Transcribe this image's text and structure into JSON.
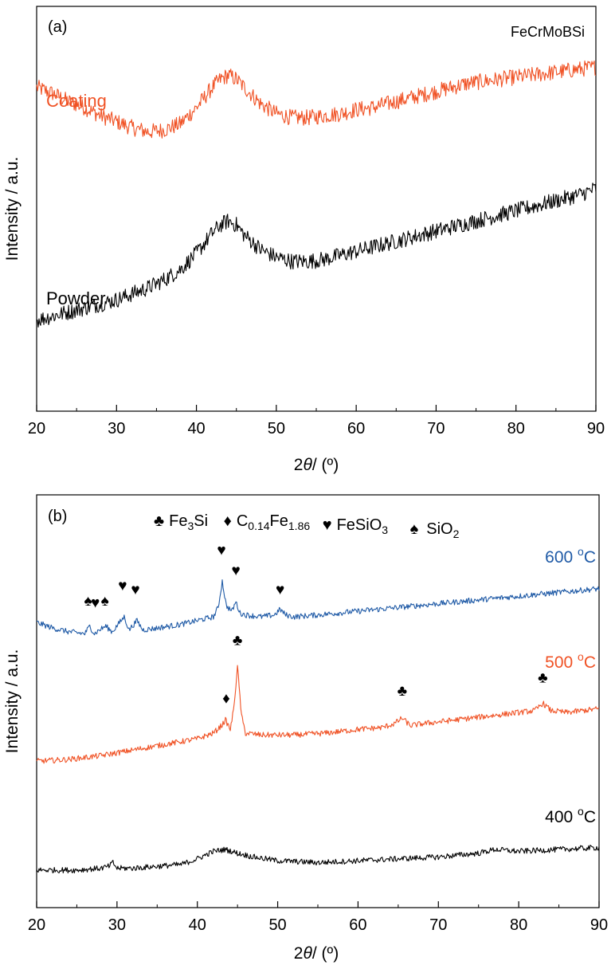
{
  "colors": {
    "coating": "#F05225",
    "powder": "#000000",
    "s600": "#1F5AA6",
    "s500": "#F05225",
    "s400": "#000000",
    "axis": "#000000"
  },
  "chart_data": [
    {
      "type": "line",
      "panel_label": "(a)",
      "title": "FeCrMoBSi",
      "xlabel_prefix": "2",
      "xlabel_symbol": "θ",
      "xlabel_suffix": "/ (º)",
      "ylabel": "Intensity / a.u.",
      "xlim": [
        20,
        90
      ],
      "xticks": [
        20,
        30,
        40,
        50,
        60,
        70,
        80,
        90
      ],
      "yticks_shown": false,
      "grid": false,
      "noise_amplitude": 0.04,
      "series": [
        {
          "name": "Coating",
          "color": "#F05225",
          "x": [
            20,
            22,
            24,
            26,
            28,
            30,
            32,
            34,
            36,
            38,
            40,
            42,
            43,
            44,
            45,
            46,
            48,
            50,
            52,
            54,
            56,
            58,
            60,
            62,
            64,
            66,
            68,
            70,
            72,
            74,
            76,
            78,
            80,
            82,
            84,
            86,
            88,
            90
          ],
          "y": [
            1.6,
            1.57,
            1.53,
            1.5,
            1.46,
            1.43,
            1.4,
            1.38,
            1.39,
            1.42,
            1.5,
            1.6,
            1.64,
            1.66,
            1.64,
            1.6,
            1.52,
            1.47,
            1.45,
            1.45,
            1.46,
            1.47,
            1.49,
            1.5,
            1.52,
            1.54,
            1.56,
            1.58,
            1.6,
            1.62,
            1.63,
            1.64,
            1.65,
            1.66,
            1.67,
            1.68,
            1.69,
            1.7
          ]
        },
        {
          "name": "Powder",
          "color": "#000000",
          "x": [
            20,
            22,
            24,
            26,
            28,
            30,
            32,
            34,
            36,
            38,
            40,
            42,
            43,
            44,
            45,
            46,
            48,
            50,
            52,
            54,
            56,
            58,
            60,
            62,
            64,
            66,
            68,
            70,
            72,
            74,
            76,
            78,
            80,
            82,
            84,
            86,
            88,
            90
          ],
          "y": [
            0.45,
            0.47,
            0.49,
            0.51,
            0.53,
            0.55,
            0.58,
            0.61,
            0.65,
            0.7,
            0.78,
            0.88,
            0.92,
            0.94,
            0.92,
            0.87,
            0.8,
            0.76,
            0.74,
            0.74,
            0.75,
            0.77,
            0.79,
            0.81,
            0.83,
            0.85,
            0.87,
            0.89,
            0.91,
            0.93,
            0.95,
            0.97,
            0.99,
            1.01,
            1.03,
            1.05,
            1.07,
            1.1
          ]
        }
      ]
    },
    {
      "type": "line",
      "panel_label": "(b)",
      "xlabel_prefix": "2",
      "xlabel_symbol": "θ",
      "xlabel_suffix": "/ (º)",
      "ylabel": "Intensity / a.u.",
      "xlim": [
        20,
        90
      ],
      "xticks": [
        20,
        30,
        40,
        50,
        60,
        70,
        80,
        90
      ],
      "yticks_shown": false,
      "grid": false,
      "noise_amplitude": 0.015,
      "legend": [
        {
          "symbol": "♣",
          "base": "Fe",
          "sub": "3",
          "rest": "Si",
          "sub2": "",
          "rest2": ""
        },
        {
          "symbol": "♦",
          "base": "C",
          "sub": "0.14",
          "rest": "Fe",
          "sub2": "1.86",
          "rest2": ""
        },
        {
          "symbol": "♥",
          "base": "FeSiO",
          "sub": "3",
          "rest": "",
          "sub2": "",
          "rest2": ""
        },
        {
          "symbol": "♠",
          "base": "SiO",
          "sub": "2",
          "rest": "",
          "sub2": "",
          "rest2": ""
        }
      ],
      "series": [
        {
          "name": "600 ºC",
          "label_num": "600 ",
          "label_sup": "o",
          "label_unit": "C",
          "color": "#1F5AA6",
          "x": [
            20,
            22,
            24,
            26,
            26.6,
            27.2,
            27.8,
            28.6,
            29.4,
            30.9,
            31.5,
            32.5,
            33.2,
            35,
            38,
            40,
            42,
            42.6,
            43.1,
            43.6,
            44.3,
            44.8,
            45.3,
            46,
            48,
            49.6,
            50.3,
            51,
            52,
            55,
            60,
            65,
            70,
            75,
            80,
            85,
            90
          ],
          "y": [
            1.52,
            1.49,
            1.47,
            1.46,
            1.5,
            1.46,
            1.48,
            1.5,
            1.47,
            1.55,
            1.48,
            1.53,
            1.48,
            1.49,
            1.51,
            1.53,
            1.55,
            1.6,
            1.74,
            1.61,
            1.58,
            1.63,
            1.57,
            1.56,
            1.55,
            1.56,
            1.59,
            1.56,
            1.55,
            1.56,
            1.58,
            1.6,
            1.62,
            1.64,
            1.66,
            1.68,
            1.7
          ]
        },
        {
          "name": "500 ºC",
          "label_num": "500 ",
          "label_sup": "o",
          "label_unit": "C",
          "color": "#F05225",
          "x": [
            20,
            24,
            28,
            32,
            36,
            40,
            42,
            43,
            43.5,
            44.1,
            44.5,
            45,
            45.5,
            46,
            48,
            52,
            56,
            60,
            63,
            64.5,
            65.5,
            66.5,
            68,
            72,
            76,
            80,
            82,
            83,
            84,
            86,
            88,
            90
          ],
          "y": [
            0.78,
            0.79,
            0.81,
            0.84,
            0.87,
            0.9,
            0.93,
            0.97,
            1.0,
            0.95,
            1.05,
            1.28,
            1.02,
            0.93,
            0.92,
            0.92,
            0.93,
            0.95,
            0.96,
            0.98,
            1.01,
            0.97,
            0.98,
            1.0,
            1.02,
            1.04,
            1.05,
            1.09,
            1.05,
            1.04,
            1.05,
            1.06
          ]
        },
        {
          "name": "400 ºC",
          "label_num": "400 ",
          "label_sup": "o",
          "label_unit": "C",
          "color": "#000000",
          "x": [
            20,
            25,
            28,
            29,
            29.5,
            30,
            32,
            35,
            38,
            40,
            42,
            43.5,
            45,
            47,
            50,
            55,
            60,
            65,
            70,
            75,
            77,
            80,
            85,
            90
          ],
          "y": [
            0.2,
            0.2,
            0.21,
            0.22,
            0.24,
            0.21,
            0.21,
            0.22,
            0.23,
            0.26,
            0.3,
            0.31,
            0.29,
            0.27,
            0.25,
            0.24,
            0.25,
            0.26,
            0.27,
            0.29,
            0.31,
            0.3,
            0.31,
            0.32
          ]
        }
      ],
      "annotations": [
        {
          "symbol": "♠",
          "x": 26.4,
          "y": 1.61
        },
        {
          "symbol": "♥",
          "x": 27.3,
          "y": 1.6
        },
        {
          "symbol": "♠",
          "x": 28.5,
          "y": 1.61
        },
        {
          "symbol": "♥",
          "x": 30.7,
          "y": 1.69
        },
        {
          "symbol": "♥",
          "x": 32.3,
          "y": 1.67
        },
        {
          "symbol": "♥",
          "x": 43.0,
          "y": 1.88
        },
        {
          "symbol": "♥",
          "x": 44.8,
          "y": 1.77
        },
        {
          "symbol": "♥",
          "x": 50.3,
          "y": 1.67
        },
        {
          "symbol": "♣",
          "x": 45.0,
          "y": 1.4
        },
        {
          "symbol": "♦",
          "x": 43.6,
          "y": 1.09
        },
        {
          "symbol": "♣",
          "x": 65.5,
          "y": 1.13
        },
        {
          "symbol": "♣",
          "x": 83.0,
          "y": 1.2
        }
      ]
    }
  ]
}
